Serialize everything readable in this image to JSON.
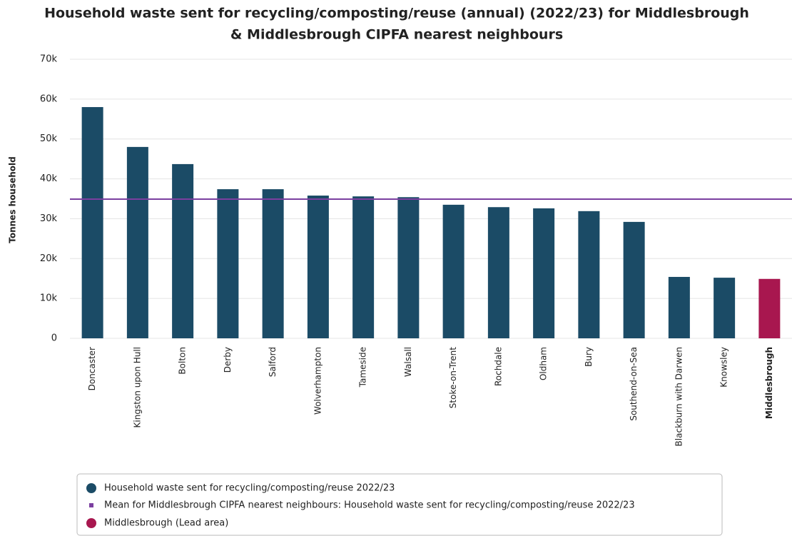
{
  "chart_data": {
    "type": "bar",
    "title": "Household waste sent for recycling/composting/reuse (annual) (2022/23) for Middlesbrough",
    "subtitle": "& Middlesbrough CIPFA nearest neighbours",
    "y_label": "Tonnes household",
    "categories": [
      "Doncaster",
      "Kingston upon Hull",
      "Bolton",
      "Derby",
      "Salford",
      "Wolverhampton",
      "Tameside",
      "Walsall",
      "Stoke-on-Trent",
      "Rochdale",
      "Oldham",
      "Bury",
      "Southend-on-Sea",
      "Blackburn with Darwen",
      "Knowsley",
      "Middlesbrough"
    ],
    "series": [
      {
        "name": "Household waste sent for recycling/composting/reuse 2022/23",
        "color": "#1b4b66",
        "values": [
          58000,
          48000,
          43700,
          37400,
          37400,
          35800,
          35600,
          35400,
          33500,
          32900,
          32600,
          31900,
          29200,
          15400,
          15200,
          14900
        ]
      }
    ],
    "reference_line": {
      "name": "Mean for Middlesbrough CIPFA nearest neighbours: Household waste sent for recycling/composting/reuse 2022/23",
      "value": 34900,
      "color": "#7b3fa0"
    },
    "highlight": {
      "name": "Middlesbrough (Lead area)",
      "index": 15,
      "color": "#a8174f"
    },
    "ylim": [
      0,
      70000
    ],
    "yticks": [
      0,
      {
        "value": 10000,
        "label": "10k"
      },
      {
        "value": 20000,
        "label": "20k"
      },
      {
        "value": 30000,
        "label": "30k"
      },
      {
        "value": 40000,
        "label": "40k"
      },
      {
        "value": 50000,
        "label": "50k"
      },
      {
        "value": 60000,
        "label": "60k"
      },
      {
        "value": 70000,
        "label": "70k"
      }
    ],
    "grid": true
  }
}
